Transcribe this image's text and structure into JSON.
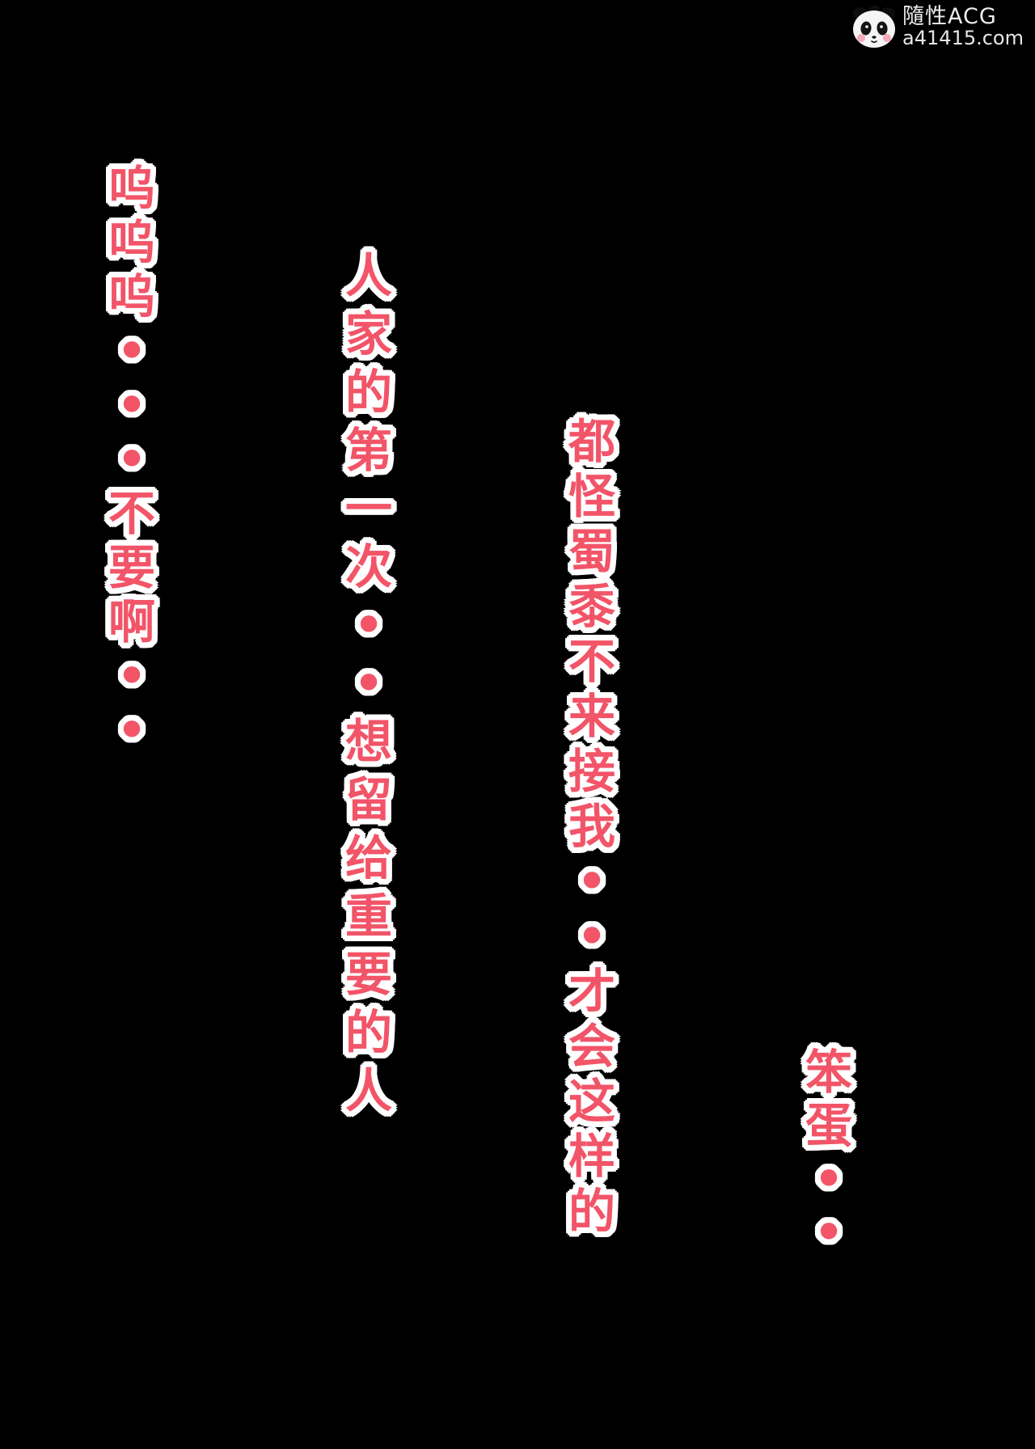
{
  "colors": {
    "background": "#000000",
    "text_fill": "#f25468",
    "text_outline": "#ffffff",
    "watermark_text": "#ededed"
  },
  "watermark": {
    "brand": "隨性ACG",
    "site": "a41415.com",
    "icon": "panda-logo-icon"
  },
  "dialogue": {
    "columns": [
      {
        "text": "呜呜呜•••不要啊••"
      },
      {
        "text": "人家的第一次••想留给重要的人"
      },
      {
        "text": "都怪蜀黍不来接我••才会这样的"
      },
      {
        "text": "笨蛋••"
      }
    ]
  }
}
